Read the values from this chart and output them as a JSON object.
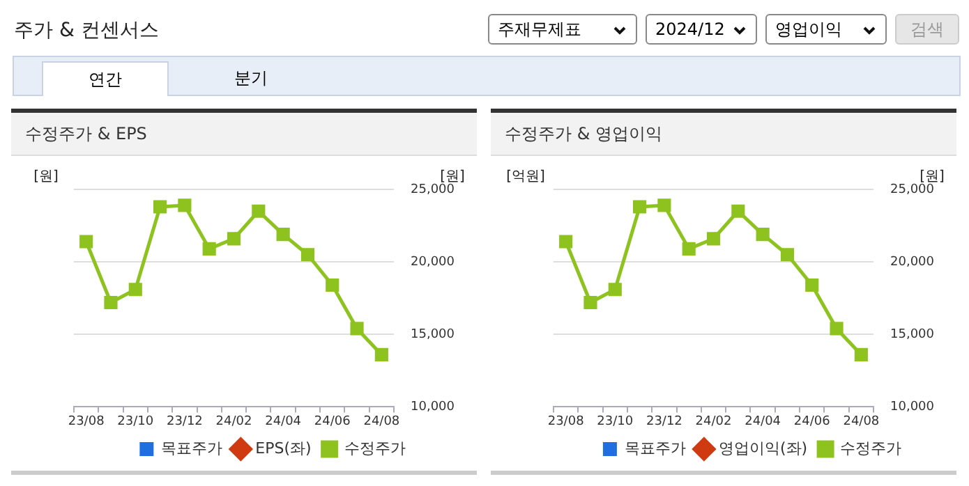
{
  "chart_data": [
    {
      "type": "other",
      "title": "주가 & 컨센서스",
      "annotations": [
        "주재무제표",
        "2024/12",
        "영업이익",
        "검색",
        "연간",
        "분기"
      ]
    },
    {
      "type": "line",
      "title": "수정주가 & EPS",
      "ylabel": "[원]",
      "y2label": "[원]",
      "categories": [
        "23/08",
        null,
        "23/10",
        null,
        "23/12",
        null,
        "24/02",
        null,
        "24/04",
        null,
        "24/06",
        null,
        "24/08"
      ],
      "y2lim": [
        10000,
        25000
      ],
      "y2ticks": [
        {
          "value": 10000,
          "label": "10,000"
        },
        {
          "value": 15000,
          "label": "15,000"
        },
        {
          "value": 20000,
          "label": "20,000"
        },
        {
          "value": 25000,
          "label": "25,000"
        }
      ],
      "grid": "y",
      "legend": "bottom",
      "series": [
        {
          "name": "목표주가",
          "type": "bar",
          "color": "#1f6fe0",
          "values": [
            null,
            null,
            null,
            null,
            null,
            null,
            null,
            null,
            null,
            null,
            null,
            null,
            null
          ]
        },
        {
          "name": "EPS(좌)",
          "type": "line",
          "marker": "diamond",
          "color": "#d03a10",
          "values": [
            null,
            null,
            null,
            null,
            null,
            null,
            null,
            null,
            null,
            null,
            null,
            null,
            null
          ]
        },
        {
          "name": "수정주가",
          "type": "line",
          "marker": "square",
          "axis": "y2",
          "color": "#8dc21f",
          "values": [
            21400,
            17200,
            18100,
            23800,
            23900,
            20900,
            21600,
            23500,
            21900,
            20500,
            18400,
            15400,
            13600
          ]
        }
      ]
    },
    {
      "type": "line",
      "title": "수정주가 & 영업이익",
      "ylabel": "[억원]",
      "y2label": "[원]",
      "categories": [
        "23/08",
        null,
        "23/10",
        null,
        "23/12",
        null,
        "24/02",
        null,
        "24/04",
        null,
        "24/06",
        null,
        "24/08"
      ],
      "y2lim": [
        10000,
        25000
      ],
      "y2ticks": [
        {
          "value": 10000,
          "label": "10,000"
        },
        {
          "value": 15000,
          "label": "15,000"
        },
        {
          "value": 20000,
          "label": "20,000"
        },
        {
          "value": 25000,
          "label": "25,000"
        }
      ],
      "grid": "y",
      "legend": "bottom",
      "series": [
        {
          "name": "목표주가",
          "type": "bar",
          "color": "#1f6fe0",
          "values": [
            null,
            null,
            null,
            null,
            null,
            null,
            null,
            null,
            null,
            null,
            null,
            null,
            null
          ]
        },
        {
          "name": "영업이익(좌)",
          "type": "line",
          "marker": "diamond",
          "color": "#d03a10",
          "values": [
            null,
            null,
            null,
            null,
            null,
            null,
            null,
            null,
            null,
            null,
            null,
            null,
            null
          ]
        },
        {
          "name": "수정주가",
          "type": "line",
          "marker": "square",
          "axis": "y2",
          "color": "#8dc21f",
          "values": [
            21400,
            17200,
            18100,
            23800,
            23900,
            20900,
            21600,
            23500,
            21900,
            20500,
            18400,
            15400,
            13600
          ]
        }
      ]
    }
  ]
}
